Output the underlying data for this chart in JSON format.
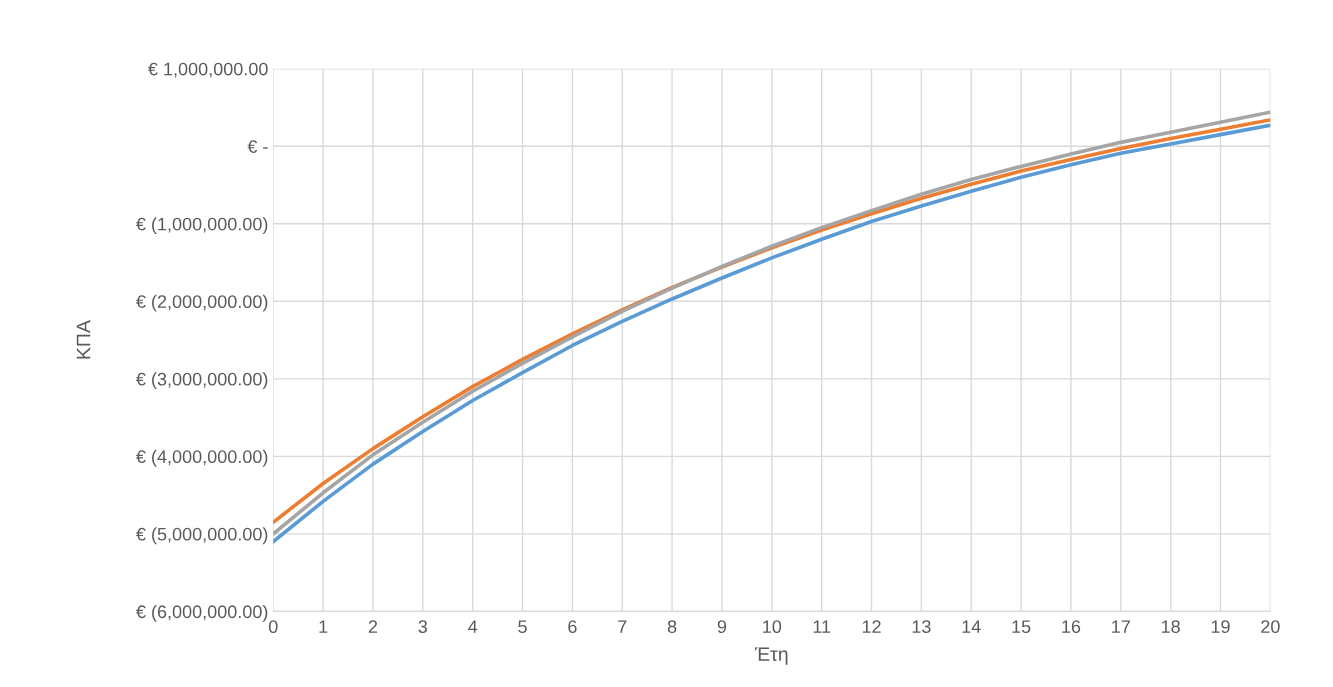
{
  "chart_data": {
    "type": "line",
    "xlabel": "Έτη",
    "ylabel": "ΚΠΑ",
    "x": [
      0,
      1,
      2,
      3,
      4,
      5,
      6,
      7,
      8,
      9,
      10,
      11,
      12,
      13,
      14,
      15,
      16,
      17,
      18,
      19,
      20
    ],
    "xlim": [
      0,
      20
    ],
    "xticks": [
      0,
      1,
      2,
      3,
      4,
      5,
      6,
      7,
      8,
      9,
      10,
      11,
      12,
      13,
      14,
      15,
      16,
      17,
      18,
      19,
      20
    ],
    "ylim": [
      -6000000,
      1000000
    ],
    "yticks": [
      {
        "value": 1000000,
        "label": "€ 1,000,000.00"
      },
      {
        "value": 0,
        "label": "€ -"
      },
      {
        "value": -1000000,
        "label": "€ (1,000,000.00)"
      },
      {
        "value": -2000000,
        "label": "€ (2,000,000.00)"
      },
      {
        "value": -3000000,
        "label": "€ (3,000,000.00)"
      },
      {
        "value": -4000000,
        "label": "€ (4,000,000.00)"
      },
      {
        "value": -5000000,
        "label": "€ (5,000,000.00)"
      },
      {
        "value": -6000000,
        "label": "€ (6,000,000.00)"
      }
    ],
    "grid": true,
    "marker": "none",
    "line_style": "solid",
    "series": [
      {
        "color": "#5b9bd5",
        "values": [
          -5100000,
          -4580000,
          -4100000,
          -3680000,
          -3280000,
          -2920000,
          -2570000,
          -2260000,
          -1970000,
          -1700000,
          -1440000,
          -1200000,
          -970000,
          -770000,
          -580000,
          -400000,
          -240000,
          -90000,
          30000,
          150000,
          270000
        ]
      },
      {
        "color": "#ed7d31",
        "values": [
          -4850000,
          -4350000,
          -3900000,
          -3490000,
          -3100000,
          -2750000,
          -2420000,
          -2110000,
          -1820000,
          -1560000,
          -1310000,
          -1080000,
          -870000,
          -670000,
          -490000,
          -320000,
          -170000,
          -30000,
          100000,
          220000,
          340000
        ]
      },
      {
        "color": "#a5a5a5",
        "values": [
          -5000000,
          -4470000,
          -3980000,
          -3560000,
          -3160000,
          -2800000,
          -2460000,
          -2130000,
          -1830000,
          -1550000,
          -1290000,
          -1050000,
          -830000,
          -620000,
          -430000,
          -260000,
          -100000,
          50000,
          180000,
          310000,
          440000
        ]
      }
    ]
  }
}
